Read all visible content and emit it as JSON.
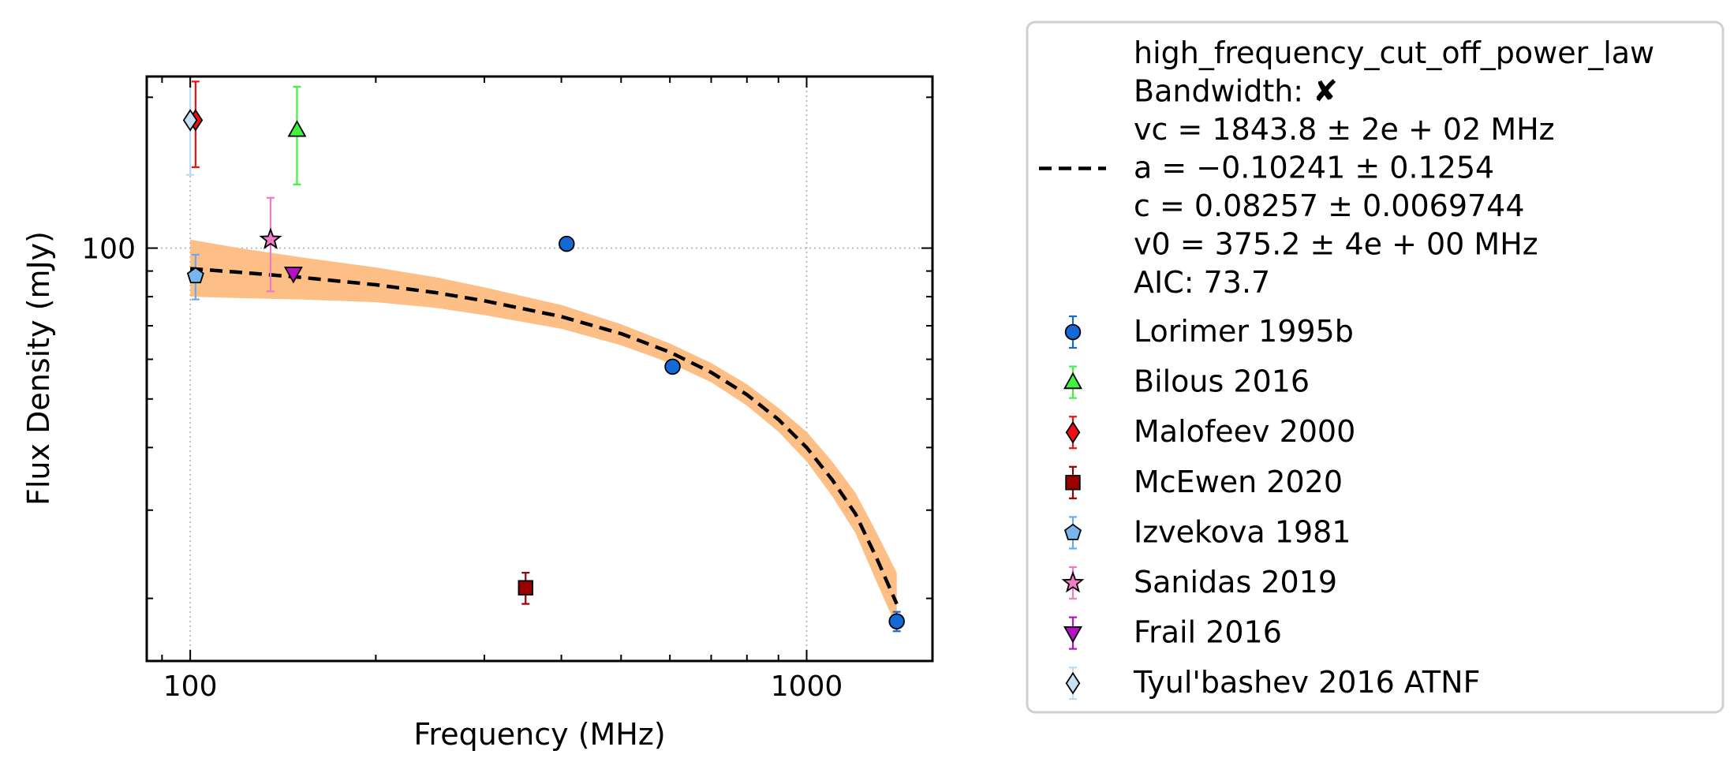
{
  "chart_data": {
    "type": "scatter",
    "xlabel": "Frequency (MHz)",
    "ylabel": "Flux Density (mJy)",
    "xscale": "log",
    "yscale": "log",
    "xlim": [
      85,
      1600
    ],
    "ylim": [
      15,
      220
    ],
    "x_ticks": [
      {
        "value": 100,
        "label": "100"
      },
      {
        "value": 1000,
        "label": "1000"
      }
    ],
    "y_ticks": [
      {
        "value": 100,
        "label": "100"
      }
    ],
    "grid": "major, dotted",
    "legend_placement": "outside-right",
    "fit": {
      "name": "high_frequency_cut_off_power_law",
      "lines": [
        "high_frequency_cut_off_power_law",
        "Bandwidth: ✘",
        "vc = 1843.8 ± 2e + 02 MHz",
        "a = −0.10241 ± 0.1254",
        "c = 0.08257 ± 0.0069744",
        "v0 = 375.2 ± 4e + 00 MHz",
        "AIC: 73.7"
      ],
      "color": "#000000",
      "band_color": "#fdbf85",
      "curve": {
        "x": [
          100,
          120,
          150,
          200,
          250,
          300,
          400,
          500,
          600,
          700,
          800,
          900,
          1000,
          1100,
          1200,
          1300,
          1400
        ],
        "y": [
          91,
          89.5,
          87.5,
          84.5,
          81.5,
          78.5,
          73,
          67.5,
          62,
          56.5,
          51,
          45.5,
          40,
          34.5,
          29.5,
          24,
          19.5
        ]
      },
      "band": {
        "x": [
          100,
          120,
          150,
          200,
          250,
          300,
          400,
          500,
          600,
          700,
          800,
          900,
          1000,
          1100,
          1200,
          1300,
          1400
        ],
        "y_upper": [
          104,
          100,
          96,
          91.5,
          87.5,
          83.5,
          77,
          70.5,
          64.5,
          59,
          53.5,
          48,
          43,
          37.5,
          32.5,
          27,
          22.5
        ],
        "y_lower": [
          80,
          79.5,
          79,
          78,
          76,
          73.5,
          69,
          64,
          59,
          54,
          48.5,
          43,
          37.5,
          32,
          27,
          21.5,
          17.5
        ]
      }
    },
    "series": [
      {
        "name": "Lorimer 1995b",
        "marker": "circle",
        "color": "#1569d6",
        "err_color": "#1569d6",
        "points": [
          {
            "x": 408,
            "y": 102,
            "err": 0
          },
          {
            "x": 606,
            "y": 58,
            "err": 0
          },
          {
            "x": 1400,
            "y": 18,
            "err": 0.8
          }
        ]
      },
      {
        "name": "Bilous 2016",
        "marker": "triangle-up",
        "color": "#3ef43e",
        "err_color": "#3ef43e",
        "points": [
          {
            "x": 149,
            "y": 172,
            "err": 38
          }
        ]
      },
      {
        "name": "Malofeev 2000",
        "marker": "diamond",
        "color": "#ee1111",
        "err_color": "#ee1111",
        "points": [
          {
            "x": 102,
            "y": 180,
            "err": 35
          }
        ]
      },
      {
        "name": "McEwen 2020",
        "marker": "square",
        "color": "#990000",
        "err_color": "#990000",
        "points": [
          {
            "x": 350,
            "y": 21,
            "err": 1.5
          }
        ]
      },
      {
        "name": "Izvekova 1981",
        "marker": "pentagon",
        "color": "#78b4ee",
        "err_color": "#6aaaf0",
        "points": [
          {
            "x": 102,
            "y": 88,
            "err": 9
          }
        ]
      },
      {
        "name": "Sanidas 2019",
        "marker": "star",
        "color": "#f07ac6",
        "err_color": "#f07ac6",
        "points": [
          {
            "x": 135,
            "y": 104,
            "err": 22
          }
        ]
      },
      {
        "name": "Frail 2016",
        "marker": "triangle-down",
        "color": "#b511c4",
        "err_color": "#b511c4",
        "points": [
          {
            "x": 147,
            "y": 89,
            "err": 0
          }
        ]
      },
      {
        "name": "Tyul'bashev 2016 ATNF",
        "marker": "diamond",
        "color": "#c6e2f8",
        "err_color": "#b8dcf5",
        "points": [
          {
            "x": 100,
            "y": 180,
            "err": 40
          }
        ]
      }
    ]
  }
}
